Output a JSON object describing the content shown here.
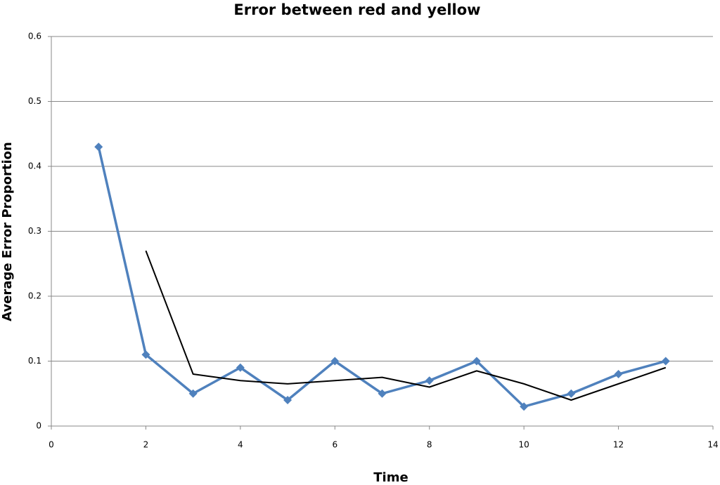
{
  "chart_data": {
    "type": "line",
    "title": "Error between red and yellow",
    "x_label": "Time",
    "y_label": "Average Error Proportion",
    "x": [
      1,
      2,
      3,
      4,
      5,
      6,
      7,
      8,
      9,
      10,
      11,
      12,
      13
    ],
    "series": [
      {
        "color": "#4f81bd",
        "marker": "diamond",
        "values": [
          0.43,
          0.11,
          0.05,
          0.09,
          0.04,
          0.1,
          0.05,
          0.07,
          0.1,
          0.03,
          0.05,
          0.08,
          0.1
        ]
      },
      {
        "color": "#000000",
        "values": [
          null,
          0.27,
          0.08,
          0.07,
          0.065,
          0.07,
          0.075,
          0.06,
          0.085,
          0.065,
          0.04,
          0.065,
          0.09
        ]
      }
    ],
    "xlim": [
      0,
      14
    ],
    "xticks": [
      0,
      2,
      4,
      6,
      8,
      10,
      12,
      14
    ],
    "ylim": [
      0,
      0.6
    ],
    "yticks": [
      0,
      0.1,
      0.2,
      0.3,
      0.4,
      0.5,
      0.6
    ],
    "grid": true
  }
}
